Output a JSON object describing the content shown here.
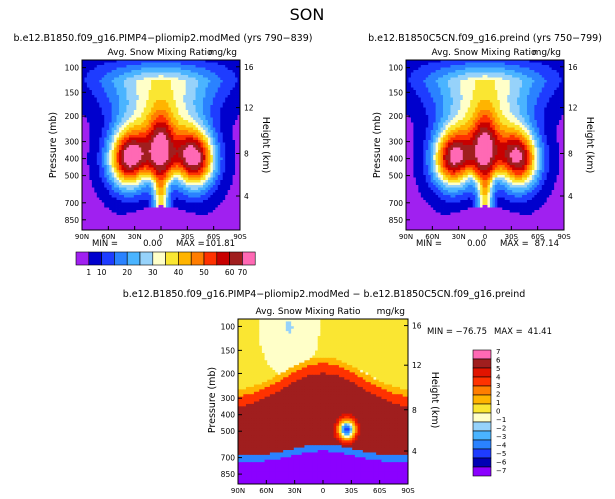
{
  "page": {
    "title": "SON"
  },
  "palettes": {
    "abs": [
      "#a020f0",
      "#0000cd",
      "#1e3cff",
      "#2a82ff",
      "#4ab4ff",
      "#96d2fa",
      "#ffffc8",
      "#fae632",
      "#ffb400",
      "#ff7d00",
      "#ff3200",
      "#c80000",
      "#a01e1e",
      "#ff69b4"
    ],
    "diff": [
      "#8b00ff",
      "#0000b4",
      "#1e3cff",
      "#2a82ff",
      "#4ab4ff",
      "#96d2fa",
      "#ffffc8",
      "#fae632",
      "#ffb400",
      "#ff7d00",
      "#ff3200",
      "#e11400",
      "#a01e1e",
      "#ff69b4"
    ]
  },
  "chart_data": [
    {
      "type": "contour",
      "title": "b.e12.B1850.f09_g16.PIMP4−pliomip2.modMed  (yrs 790−839)",
      "subtitle": "Avg. Snow Mixing Ratio",
      "units": "mg/kg",
      "xlabel": "",
      "ylabel": "Pressure (mb)",
      "ylabel_right": "Height (km)",
      "x_ticks": [
        "90N",
        "60N",
        "30N",
        "0",
        "30S",
        "60S",
        "90S"
      ],
      "y_ticks": [
        "100",
        "150",
        "200",
        "300",
        "400",
        "500",
        "700",
        "850"
      ],
      "y_ticks_right": [
        "16",
        "12",
        "8",
        "4"
      ],
      "stats_min_label": "MIN =",
      "stats_min": "0.00",
      "stats_max_label": "MAX =",
      "stats_max": "101.81",
      "variant": "a"
    },
    {
      "type": "contour",
      "title": "b.e12.B1850C5CN.f09_g16.preind  (yrs 750−799)",
      "subtitle": "Avg. Snow Mixing Ratio",
      "units": "mg/kg",
      "xlabel": "",
      "ylabel": "Pressure (mb)",
      "ylabel_right": "Height (km)",
      "x_ticks": [
        "90N",
        "60N",
        "30N",
        "0",
        "30S",
        "60S",
        "90S"
      ],
      "y_ticks": [
        "100",
        "150",
        "200",
        "300",
        "400",
        "500",
        "700",
        "850"
      ],
      "y_ticks_right": [
        "16",
        "12",
        "8",
        "4"
      ],
      "stats_min_label": "MIN =",
      "stats_min": "0.00",
      "stats_max_label": "MAX =",
      "stats_max": "87.14",
      "variant": "b"
    },
    {
      "type": "contour",
      "title": "b.e12.B1850.f09_g16.PIMP4−pliomip2.modMed − b.e12.B1850C5CN.f09_g16.preind",
      "subtitle": "Avg. Snow Mixing Ratio",
      "units": "mg/kg",
      "xlabel": "",
      "ylabel": "Pressure (mb)",
      "ylabel_right": "Height (km)",
      "x_ticks": [
        "90N",
        "60N",
        "30N",
        "0",
        "30S",
        "60S",
        "90S"
      ],
      "y_ticks": [
        "100",
        "150",
        "200",
        "300",
        "400",
        "500",
        "700",
        "850"
      ],
      "y_ticks_right": [
        "16",
        "12",
        "8",
        "4"
      ],
      "stats_min_label": "MIN =",
      "stats_min": "−76.75",
      "stats_max_label": "MAX =",
      "stats_max": "41.41",
      "variant": "diff"
    }
  ],
  "colorbar_abs": {
    "labels": [
      "1",
      "10",
      "20",
      "30",
      "40",
      "50",
      "60",
      "70"
    ]
  },
  "colorbar_diff": {
    "labels": [
      "7",
      "6",
      "5",
      "4",
      "3",
      "2",
      "1",
      "0",
      "−1",
      "−2",
      "−3",
      "−4",
      "−5",
      "−6",
      "−7"
    ]
  }
}
